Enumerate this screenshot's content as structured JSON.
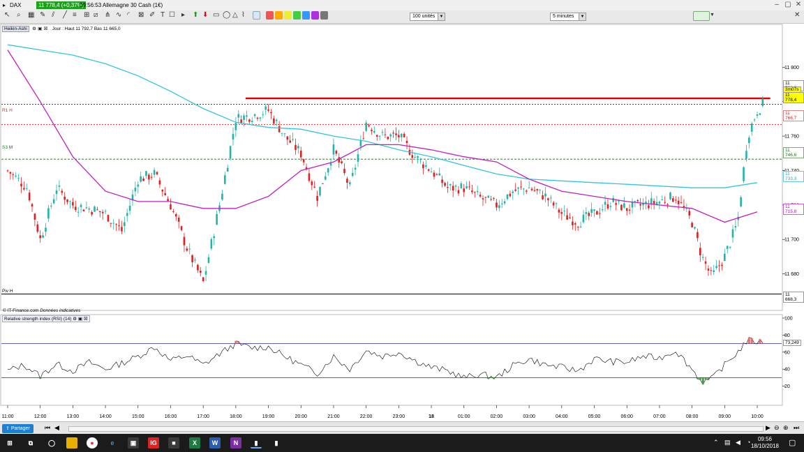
{
  "window": {
    "instrument": "DAX",
    "price_badge": "11 778,4 (+0,37%)",
    "time_title": "09:56:53 Allemagne 30 Cash (1€)"
  },
  "toolbar": {
    "quantity_select": "100 unités",
    "interval_select": "5 minutes"
  },
  "legend": {
    "chart_type": "Heikin-Ashi",
    "ohlc_text": "Jour : Haut 11 792,7 Bas 11 665,0",
    "source_note": "© IT-Finance.com",
    "source_note_italic": "Données indicatives",
    "rsi_title": "Relative strength index (RSI) (14)"
  },
  "levels": {
    "r1_label": "R1 H",
    "s3_label": "S3 M",
    "pivot_label": "Piv H",
    "current_price": "11 778,4",
    "timer": "3m07s",
    "red_line_price": "11 781,9",
    "r1_price": "11 766,7",
    "s3_price": "11 746,6",
    "ma_cyan_price": "11 733,3",
    "ma_magenta_price": "11 715,8",
    "pivot_price": "11 668,3",
    "rsi_value": "73,249"
  },
  "colors": {
    "up": "#1fb5a8",
    "down": "#e02020",
    "ma_cyan": "#33c4dd",
    "ma_magenta": "#c020c0",
    "red_line": "#e00000",
    "rsi_line": "#000000",
    "rsi_band": "#2b2b9a"
  },
  "taskbar": {
    "time": "09:56",
    "date": "18/10/2018"
  },
  "statusbar": {
    "share_label": "Partager"
  },
  "chart_data": {
    "type": "candlestick",
    "y_ticks": [
      11680,
      11700,
      11720,
      11740,
      11760,
      11780,
      11800
    ],
    "y_tick_labels": [
      "11 680",
      "11 700",
      "11 720",
      "11 740",
      "11 760",
      "11 780",
      "11 800"
    ],
    "ylim": [
      11660,
      11822
    ],
    "x_labels": [
      "11:00",
      "12:00",
      "13:00",
      "14:00",
      "15:00",
      "16:00",
      "17:00",
      "18:00",
      "19:00",
      "20:00",
      "21:00",
      "22:00",
      "23:00",
      "18",
      "01:00",
      "02:00",
      "03:00",
      "04:00",
      "05:00",
      "06:00",
      "07:00",
      "08:00",
      "09:00",
      "10:00"
    ],
    "horizontal_levels": {
      "red_line": 11781.9,
      "r1_h": 11766.7,
      "s3_m": 11746.6,
      "pivot_h": 11668.3,
      "current": 11778.4
    },
    "price_path": [
      [
        0,
        11740
      ],
      [
        0.6,
        11730
      ],
      [
        1,
        11700
      ],
      [
        1.5,
        11730
      ],
      [
        2,
        11720
      ],
      [
        2.5,
        11718
      ],
      [
        3,
        11715
      ],
      [
        3.5,
        11705
      ],
      [
        4,
        11735
      ],
      [
        4.5,
        11738
      ],
      [
        5,
        11720
      ],
      [
        5.5,
        11695
      ],
      [
        6,
        11675
      ],
      [
        6.5,
        11720
      ],
      [
        7,
        11770
      ],
      [
        7.5,
        11772
      ],
      [
        8,
        11775
      ],
      [
        8.5,
        11760
      ],
      [
        9,
        11750
      ],
      [
        9.5,
        11725
      ],
      [
        10,
        11752
      ],
      [
        10.5,
        11730
      ],
      [
        11,
        11768
      ],
      [
        11.5,
        11760
      ],
      [
        12,
        11760
      ],
      [
        12.5,
        11748
      ],
      [
        13,
        11740
      ],
      [
        13.5,
        11730
      ],
      [
        14,
        11730
      ],
      [
        14.5,
        11724
      ],
      [
        15,
        11720
      ],
      [
        15.5,
        11728
      ],
      [
        16,
        11730
      ],
      [
        16.5,
        11725
      ],
      [
        17,
        11715
      ],
      [
        17.5,
        11710
      ],
      [
        18,
        11715
      ],
      [
        18.5,
        11722
      ],
      [
        19,
        11718
      ],
      [
        19.5,
        11720
      ],
      [
        20,
        11722
      ],
      [
        20.5,
        11725
      ],
      [
        21,
        11710
      ],
      [
        21.3,
        11690
      ],
      [
        21.6,
        11678
      ],
      [
        22,
        11690
      ],
      [
        22.4,
        11710
      ],
      [
        22.7,
        11760
      ],
      [
        23,
        11775
      ],
      [
        23.2,
        11779
      ]
    ],
    "ma_cyan_path": [
      [
        0,
        11813
      ],
      [
        1,
        11810
      ],
      [
        2,
        11807
      ],
      [
        3,
        11802
      ],
      [
        4,
        11795
      ],
      [
        5,
        11786
      ],
      [
        6,
        11776
      ],
      [
        7,
        11768
      ],
      [
        8,
        11765
      ],
      [
        9,
        11764
      ],
      [
        10,
        11760
      ],
      [
        11,
        11757
      ],
      [
        12,
        11752
      ],
      [
        13,
        11748
      ],
      [
        14,
        11743
      ],
      [
        15,
        11738
      ],
      [
        16,
        11735
      ],
      [
        17,
        11734
      ],
      [
        18,
        11733
      ],
      [
        19,
        11732
      ],
      [
        20,
        11731
      ],
      [
        21,
        11730
      ],
      [
        22,
        11730
      ],
      [
        23,
        11733
      ]
    ],
    "ma_magenta_path": [
      [
        0,
        11810
      ],
      [
        1,
        11780
      ],
      [
        2,
        11748
      ],
      [
        3,
        11728
      ],
      [
        4,
        11722
      ],
      [
        5,
        11722
      ],
      [
        6,
        11718
      ],
      [
        7,
        11718
      ],
      [
        8,
        11725
      ],
      [
        9,
        11740
      ],
      [
        10,
        11745
      ],
      [
        11,
        11755
      ],
      [
        12,
        11755
      ],
      [
        13,
        11752
      ],
      [
        14,
        11748
      ],
      [
        15,
        11745
      ],
      [
        16,
        11735
      ],
      [
        17,
        11728
      ],
      [
        18,
        11725
      ],
      [
        19,
        11722
      ],
      [
        20,
        11720
      ],
      [
        21,
        11718
      ],
      [
        22,
        11710
      ],
      [
        23,
        11716
      ]
    ],
    "rsi": {
      "ylim": [
        0,
        100
      ],
      "y_ticks": [
        20,
        40,
        60,
        80,
        100
      ],
      "bands": [
        30,
        70
      ],
      "path": [
        [
          0,
          38
        ],
        [
          0.5,
          45
        ],
        [
          1,
          32
        ],
        [
          1.5,
          46
        ],
        [
          2,
          38
        ],
        [
          2.5,
          48
        ],
        [
          3,
          40
        ],
        [
          3.5,
          47
        ],
        [
          4,
          55
        ],
        [
          4.5,
          66
        ],
        [
          5,
          50
        ],
        [
          5.5,
          56
        ],
        [
          6,
          45
        ],
        [
          6.5,
          58
        ],
        [
          7,
          70
        ],
        [
          7.5,
          65
        ],
        [
          8,
          66
        ],
        [
          8.5,
          55
        ],
        [
          9,
          45
        ],
        [
          9.5,
          35
        ],
        [
          10,
          55
        ],
        [
          10.5,
          40
        ],
        [
          11,
          62
        ],
        [
          11.5,
          55
        ],
        [
          12,
          60
        ],
        [
          12.5,
          50
        ],
        [
          13,
          42
        ],
        [
          13.5,
          38
        ],
        [
          14,
          30
        ],
        [
          14.5,
          34
        ],
        [
          15,
          30
        ],
        [
          15.5,
          44
        ],
        [
          16,
          52
        ],
        [
          16.5,
          45
        ],
        [
          17,
          42
        ],
        [
          17.5,
          38
        ],
        [
          18,
          52
        ],
        [
          18.5,
          49
        ],
        [
          19,
          48
        ],
        [
          19.5,
          55
        ],
        [
          20,
          53
        ],
        [
          20.5,
          62
        ],
        [
          21,
          40
        ],
        [
          21.3,
          25
        ],
        [
          21.6,
          28
        ],
        [
          22,
          45
        ],
        [
          22.4,
          60
        ],
        [
          22.7,
          74
        ],
        [
          23,
          72
        ],
        [
          23.2,
          73
        ]
      ]
    }
  }
}
